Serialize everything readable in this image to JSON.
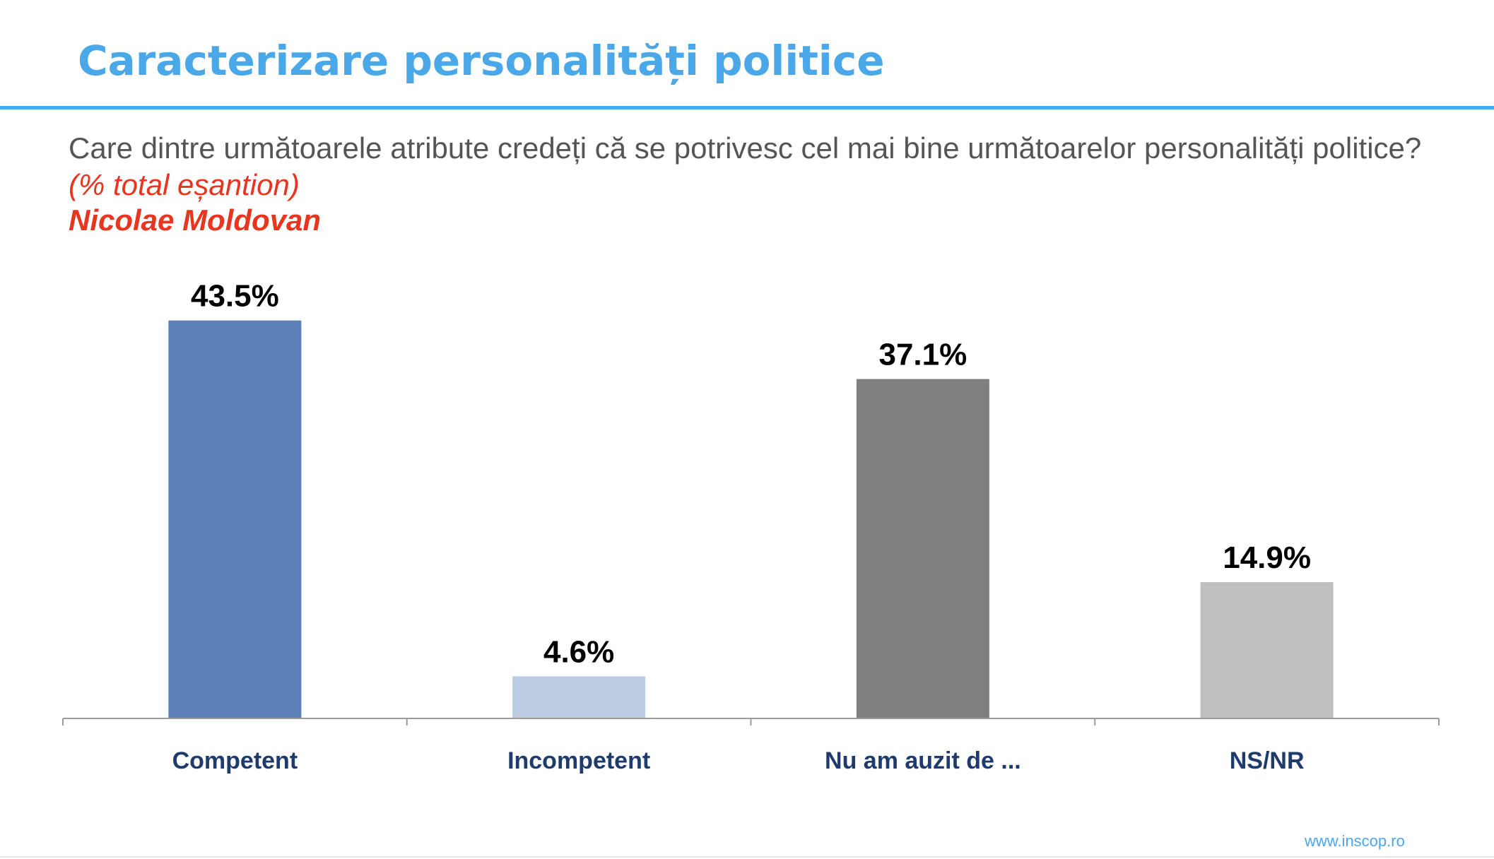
{
  "title": "Caracterizare personalități politice",
  "question": "Care dintre următoarele atribute credeți că se potrivesc cel mai bine următoarelor personalități politice?",
  "sample_note": "(% total eșantion)",
  "person": "Nicolae Moldovan",
  "footer_url": "www.inscop.ro",
  "colors": {
    "title": "#4aa8e8",
    "highlight": "#e8351f",
    "axis_label": "#1f3b6e"
  },
  "chart_data": {
    "type": "bar",
    "title": "",
    "xlabel": "",
    "ylabel": "",
    "categories": [
      "Competent",
      "Incompetent",
      "Nu am auzit de ...",
      "NS/NR"
    ],
    "values": [
      43.5,
      4.6,
      37.1,
      14.9
    ],
    "value_labels": [
      "43.5%",
      "4.6%",
      "37.1%",
      "14.9%"
    ],
    "bar_colors": [
      "#5b7fb6",
      "#bccce3",
      "#7f7f7f",
      "#bfbfbf"
    ],
    "ylim": [
      0,
      45
    ],
    "grid": false,
    "legend": "none"
  }
}
